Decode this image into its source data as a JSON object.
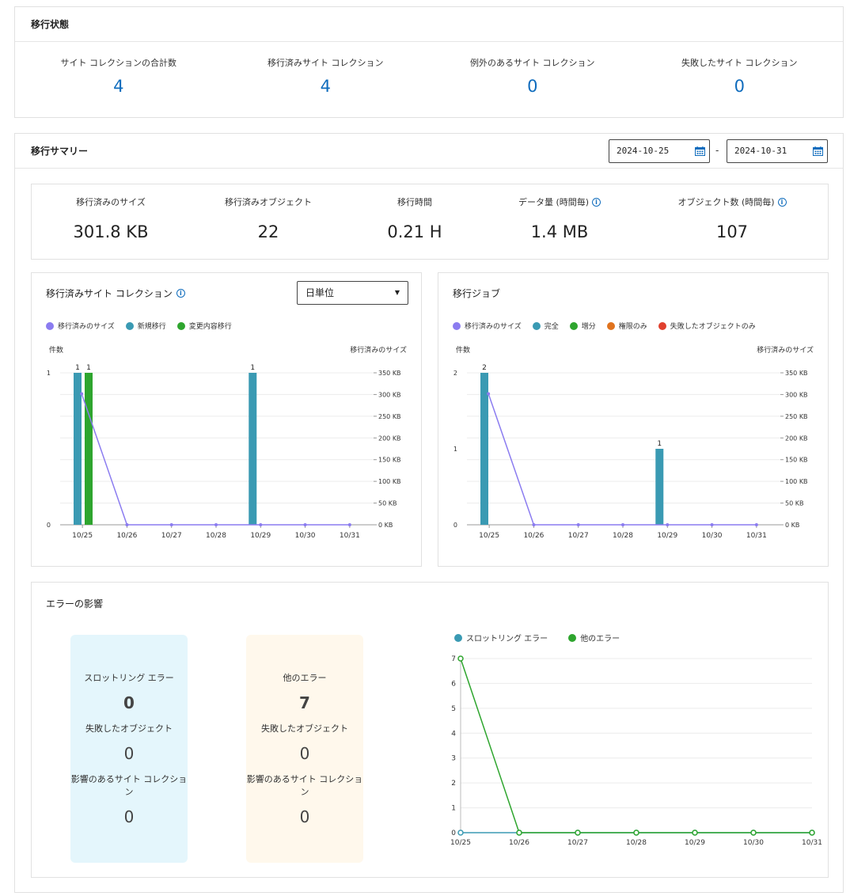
{
  "status": {
    "title": "移行状態",
    "items": [
      {
        "label": "サイト コレクションの合計数",
        "value": "4"
      },
      {
        "label": "移行済みサイト コレクション",
        "value": "4"
      },
      {
        "label": "例外のあるサイト コレクション",
        "value": "0"
      },
      {
        "label": "失敗したサイト コレクション",
        "value": "0"
      }
    ]
  },
  "summary": {
    "title": "移行サマリー",
    "date_from": "2024-10-25",
    "date_to": "2024-10-31",
    "date_sep": "-",
    "metrics": [
      {
        "label": "移行済みのサイズ",
        "value": "301.8 KB",
        "info": false
      },
      {
        "label": "移行済みオブジェクト",
        "value": "22",
        "info": false
      },
      {
        "label": "移行時間",
        "value": "0.21 H",
        "info": false
      },
      {
        "label": "データ量 (時間毎)",
        "value": "1.4 MB",
        "info": true
      },
      {
        "label": "オブジェクト数 (時間毎)",
        "value": "107",
        "info": true
      }
    ],
    "info_glyph": "i"
  },
  "colors": {
    "accent": "#0f6cbd",
    "purple": "#8b7cf0",
    "teal": "#3a9ab3",
    "green": "#2ea52e",
    "orange": "#e0731e",
    "red": "#e0402e",
    "throttle_bg": "#e4f6fc",
    "other_bg": "#fff8ec"
  },
  "chart_data": [
    {
      "type": "bar",
      "title": "移行済みサイト コレクション",
      "select_value": "日単位",
      "y_left_label": "件数",
      "y_right_label": "移行済みのサイズ",
      "categories": [
        "10/25",
        "10/26",
        "10/27",
        "10/28",
        "10/29",
        "10/30",
        "10/31"
      ],
      "ylim": [
        0,
        1
      ],
      "y_ticks": [
        "0",
        "1"
      ],
      "y2lim": [
        0,
        350
      ],
      "y2_ticks": [
        "0 KB",
        "50 KB",
        "100 KB",
        "150 KB",
        "200 KB",
        "250 KB",
        "300 KB",
        "350 KB"
      ],
      "series": [
        {
          "name": "移行済みのサイズ",
          "kind": "line",
          "axis": "right",
          "values": [
            301.8,
            0,
            0,
            0,
            0,
            0,
            0
          ]
        },
        {
          "name": "新規移行",
          "kind": "bar",
          "values": [
            1,
            0,
            0,
            0,
            1,
            0,
            0
          ]
        },
        {
          "name": "変更内容移行",
          "kind": "bar",
          "values": [
            1,
            0,
            0,
            0,
            0,
            0,
            0
          ]
        }
      ],
      "data_labels": [
        "1",
        "1",
        "1"
      ],
      "legend": "top-left"
    },
    {
      "type": "bar",
      "title": "移行ジョブ",
      "y_left_label": "件数",
      "y_right_label": "移行済みのサイズ",
      "categories": [
        "10/25",
        "10/26",
        "10/27",
        "10/28",
        "10/29",
        "10/30",
        "10/31"
      ],
      "ylim": [
        0,
        2
      ],
      "y_ticks": [
        "0",
        "1",
        "2"
      ],
      "y2lim": [
        0,
        350
      ],
      "y2_ticks": [
        "0 KB",
        "50 KB",
        "100 KB",
        "150 KB",
        "200 KB",
        "250 KB",
        "300 KB",
        "350 KB"
      ],
      "series": [
        {
          "name": "移行済みのサイズ",
          "kind": "line",
          "axis": "right",
          "values": [
            301.8,
            0,
            0,
            0,
            0,
            0,
            0
          ]
        },
        {
          "name": "完全",
          "kind": "bar",
          "values": [
            2,
            0,
            0,
            0,
            1,
            0,
            0
          ]
        },
        {
          "name": "増分",
          "kind": "bar",
          "values": [
            0,
            0,
            0,
            0,
            0,
            0,
            0
          ]
        },
        {
          "name": "権限のみ",
          "kind": "bar",
          "values": [
            0,
            0,
            0,
            0,
            0,
            0,
            0
          ]
        },
        {
          "name": "失敗したオブジェクトのみ",
          "kind": "bar",
          "values": [
            0,
            0,
            0,
            0,
            0,
            0,
            0
          ]
        }
      ],
      "data_labels": [
        "2",
        "1"
      ],
      "legend": "top-left"
    },
    {
      "type": "line",
      "categories": [
        "10/25",
        "10/26",
        "10/27",
        "10/28",
        "10/29",
        "10/30",
        "10/31"
      ],
      "ylim": [
        0,
        7
      ],
      "y_ticks": [
        "0",
        "1",
        "2",
        "3",
        "4",
        "5",
        "6",
        "7"
      ],
      "series": [
        {
          "name": "スロットリング エラー",
          "values": [
            0,
            0,
            0,
            0,
            0,
            0,
            0
          ]
        },
        {
          "name": "他のエラー",
          "values": [
            7,
            0,
            0,
            0,
            0,
            0,
            0
          ]
        }
      ],
      "legend": "top-left"
    }
  ],
  "error_impact": {
    "title": "エラーの影響",
    "throttle": {
      "label": "スロットリング エラー",
      "value": "0",
      "failed_label": "失敗したオブジェクト",
      "failed_value": "0",
      "sites_label": "影響のあるサイト コレクション",
      "sites_value": "0"
    },
    "other": {
      "label": "他のエラー",
      "value": "7",
      "failed_label": "失敗したオブジェクト",
      "failed_value": "0",
      "sites_label": "影響のあるサイト コレクション",
      "sites_value": "0"
    }
  }
}
